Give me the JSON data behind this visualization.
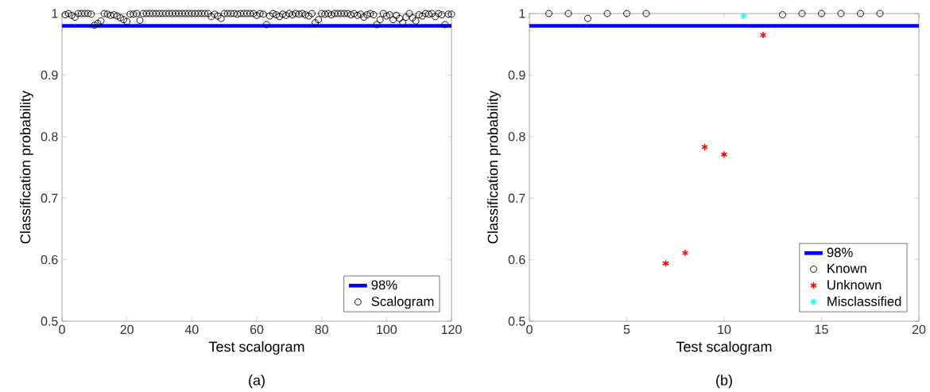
{
  "chart_data": [
    {
      "type": "scatter",
      "xlabel": "Test scalogram",
      "ylabel": "Classification probability",
      "xlim": [
        0,
        120
      ],
      "ylim": [
        0.5,
        1
      ],
      "xticks": [
        0,
        20,
        40,
        60,
        80,
        100,
        120
      ],
      "yticks": [
        0.5,
        0.6,
        0.7,
        0.8,
        0.9,
        1
      ],
      "legend": "bottom right",
      "ref_lines": [
        {
          "axis": "y",
          "value": 0.98,
          "label": "98%",
          "color": "#0000ff"
        }
      ],
      "series": [
        {
          "name": "Scalogram",
          "color": "#000000",
          "marker": "circle",
          "x": [
            1,
            2,
            3,
            4,
            5,
            6,
            7,
            8,
            9,
            10,
            11,
            12,
            13,
            14,
            15,
            16,
            17,
            18,
            19,
            20,
            21,
            22,
            23,
            24,
            25,
            26,
            27,
            28,
            29,
            30,
            31,
            32,
            33,
            34,
            35,
            36,
            37,
            38,
            39,
            40,
            41,
            42,
            43,
            44,
            45,
            46,
            47,
            48,
            49,
            50,
            51,
            52,
            53,
            54,
            55,
            56,
            57,
            58,
            59,
            60,
            61,
            62,
            63,
            64,
            65,
            66,
            67,
            68,
            69,
            70,
            71,
            72,
            73,
            74,
            75,
            76,
            77,
            78,
            79,
            80,
            81,
            82,
            83,
            84,
            85,
            86,
            87,
            88,
            89,
            90,
            91,
            92,
            93,
            94,
            95,
            96,
            97,
            98,
            99,
            100,
            101,
            102,
            103,
            104,
            105,
            106,
            107,
            108,
            109,
            110,
            111,
            112,
            113,
            114,
            115,
            116,
            117,
            118,
            119,
            120
          ],
          "values": [
            0.998,
            1.0,
            0.997,
            0.994,
            1.0,
            1.0,
            1.0,
            1.0,
            0.999,
            0.981,
            0.984,
            0.988,
            1.0,
            0.999,
            0.997,
            0.998,
            0.996,
            0.993,
            0.99,
            0.987,
            0.999,
            0.999,
            1.0,
            0.989,
            1.0,
            1.0,
            1.0,
            1.0,
            1.0,
            1.0,
            1.0,
            1.0,
            1.0,
            1.0,
            1.0,
            1.0,
            1.0,
            1.0,
            1.0,
            1.0,
            1.0,
            1.0,
            1.0,
            1.0,
            1.0,
            0.995,
            0.999,
            0.996,
            0.992,
            1.0,
            1.0,
            1.0,
            1.0,
            0.999,
            1.0,
            1.0,
            1.0,
            1.0,
            1.0,
            0.997,
            1.0,
            0.999,
            0.982,
            0.996,
            1.0,
            0.998,
            0.995,
            0.999,
            0.997,
            1.0,
            0.998,
            1.0,
            0.999,
            1.0,
            0.998,
            0.996,
            1.0,
            0.985,
            0.99,
            1.0,
            0.999,
            1.0,
            0.998,
            1.0,
            1.0,
            1.0,
            1.0,
            1.0,
            0.998,
            1.0,
            0.997,
            0.999,
            0.994,
            0.998,
            1.0,
            0.998,
            0.982,
            0.99,
            1.0,
            0.996,
            0.998,
            0.99,
            0.997,
            0.992,
            0.985,
            0.994,
            1.0,
            0.993,
            0.988,
            0.998,
            0.996,
            1.0,
            0.999,
            1.0,
            0.995,
            1.0,
            0.998,
            0.982,
            0.999,
            0.999
          ]
        }
      ],
      "annotations": [
        "(a)"
      ]
    },
    {
      "type": "scatter",
      "xlabel": "Test scalogram",
      "ylabel": "Classification probability",
      "xlim": [
        0,
        20
      ],
      "ylim": [
        0.5,
        1
      ],
      "xticks": [
        0,
        5,
        10,
        15,
        20
      ],
      "yticks": [
        0.5,
        0.6,
        0.7,
        0.8,
        0.9,
        1
      ],
      "legend": "bottom right",
      "ref_lines": [
        {
          "axis": "y",
          "value": 0.98,
          "label": "98%",
          "color": "#0000ff"
        }
      ],
      "series": [
        {
          "name": "Known",
          "color": "#000000",
          "marker": "circle",
          "x": [
            1,
            2,
            3,
            4,
            5,
            6,
            13,
            14,
            15,
            16,
            17,
            18
          ],
          "values": [
            1.0,
            1.0,
            0.992,
            1.0,
            1.0,
            1.0,
            0.998,
            1.0,
            1.0,
            1.0,
            1.0,
            1.0
          ]
        },
        {
          "name": "Unknown",
          "color": "#ff0000",
          "marker": "cross",
          "x": [
            7,
            8,
            9,
            10,
            12
          ],
          "values": [
            0.594,
            0.611,
            0.783,
            0.771,
            0.965
          ]
        },
        {
          "name": "Misclassified",
          "color": "#00ffff",
          "marker": "cross",
          "x": [
            11
          ],
          "values": [
            0.996
          ]
        }
      ],
      "annotations": [
        "(b)"
      ]
    }
  ]
}
